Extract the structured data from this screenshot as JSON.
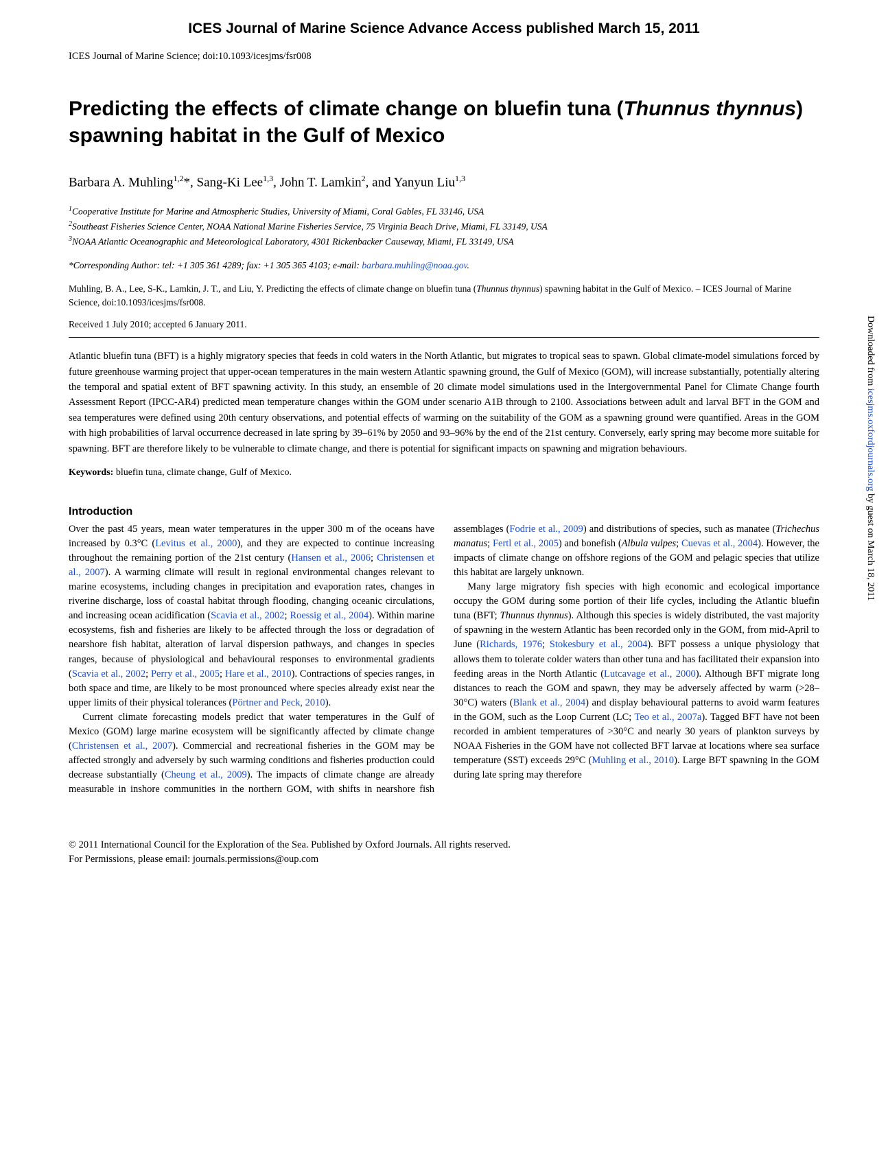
{
  "banner": "ICES Journal of Marine Science Advance Access published March 15, 2011",
  "journal_line": "ICES Journal of Marine Science; doi:10.1093/icesjms/fsr008",
  "title_part1": "Predicting the effects of climate change on bluefin tuna (",
  "title_species": "Thunnus thynnus",
  "title_part2": ") spawning habitat in the Gulf of Mexico",
  "authors_html": "Barbara A. Muhling__SUP__1,2__ESUP__*, Sang-Ki Lee__SUP__1,3__ESUP__, John T. Lamkin__SUP__2__ESUP__, and Yanyun Liu__SUP__1,3__ESUP__",
  "affiliations": [
    {
      "num": "1",
      "text": "Cooperative Institute for Marine and Atmospheric Studies, University of Miami, Coral Gables, FL 33146, USA"
    },
    {
      "num": "2",
      "text": "Southeast Fisheries Science Center, NOAA National Marine Fisheries Service, 75 Virginia Beach Drive, Miami, FL 33149, USA"
    },
    {
      "num": "3",
      "text": "NOAA Atlantic Oceanographic and Meteorological Laboratory, 4301 Rickenbacker Causeway, Miami, FL 33149, USA"
    }
  ],
  "corresponding_prefix": "*Corresponding Author: tel: +1 305 361 4289; fax: +1 305 365 4103; e-mail: ",
  "corresponding_email": "barbara.muhling@noaa.gov",
  "citation_prefix": "Muhling, B. A., Lee, S-K., Lamkin, J. T., and Liu, Y. Predicting the effects of climate change on bluefin tuna (",
  "citation_species": "Thunnus thynnus",
  "citation_suffix": ") spawning habitat in the Gulf of Mexico. – ICES Journal of Marine Science, doi:10.1093/icesjms/fsr008.",
  "dates": "Received 1 July 2010; accepted 6 January 2011.",
  "abstract": "Atlantic bluefin tuna (BFT) is a highly migratory species that feeds in cold waters in the North Atlantic, but migrates to tropical seas to spawn. Global climate-model simulations forced by future greenhouse warming project that upper-ocean temperatures in the main western Atlantic spawning ground, the Gulf of Mexico (GOM), will increase substantially, potentially altering the temporal and spatial extent of BFT spawning activity. In this study, an ensemble of 20 climate model simulations used in the Intergovernmental Panel for Climate Change fourth Assessment Report (IPCC-AR4) predicted mean temperature changes within the GOM under scenario A1B through to 2100. Associations between adult and larval BFT in the GOM and sea temperatures were defined using 20th century observations, and potential effects of warming on the suitability of the GOM as a spawning ground were quantified. Areas in the GOM with high probabilities of larval occurrence decreased in late spring by 39–61% by 2050 and 93–96% by the end of the 21st century. Conversely, early spring may become more suitable for spawning. BFT are therefore likely to be vulnerable to climate change, and there is potential for significant impacts on spawning and migration behaviours.",
  "keywords_label": "Keywords:",
  "keywords_text": " bluefin tuna, climate change, Gulf of Mexico.",
  "intro_heading": "Introduction",
  "body_tokens": [
    {
      "t": "p_open"
    },
    {
      "t": "text",
      "v": "Over the past 45 years, mean water temperatures in the upper 300 m of the oceans have increased by 0.3°C ("
    },
    {
      "t": "link",
      "v": "Levitus et al., 2000"
    },
    {
      "t": "text",
      "v": "), and they are expected to continue increasing throughout the remaining portion of the 21st century ("
    },
    {
      "t": "link",
      "v": "Hansen et al., 2006"
    },
    {
      "t": "text",
      "v": "; "
    },
    {
      "t": "link",
      "v": "Christensen et al., 2007"
    },
    {
      "t": "text",
      "v": "). A warming climate will result in regional environmental changes relevant to marine ecosystems, including changes in precipitation and evaporation rates, changes in riverine discharge, loss of coastal habitat through flooding, changing oceanic circulations, and increasing ocean acidification ("
    },
    {
      "t": "link",
      "v": "Scavia et al., 2002"
    },
    {
      "t": "text",
      "v": "; "
    },
    {
      "t": "link",
      "v": "Roessig et al., 2004"
    },
    {
      "t": "text",
      "v": "). Within marine ecosystems, fish and fisheries are likely to be affected through the loss or degradation of nearshore fish habitat, alteration of larval dispersion pathways, and changes in species ranges, because of physiological and behavioural responses to environmental gradients ("
    },
    {
      "t": "link",
      "v": "Scavia et al., 2002"
    },
    {
      "t": "text",
      "v": "; "
    },
    {
      "t": "link",
      "v": "Perry et al., 2005"
    },
    {
      "t": "text",
      "v": "; "
    },
    {
      "t": "link",
      "v": "Hare et al., 2010"
    },
    {
      "t": "text",
      "v": "). Contractions of species ranges, in both space and time, are likely to be most pronounced where species already exist near the upper limits of their physical tolerances ("
    },
    {
      "t": "link",
      "v": "Pörtner and Peck, 2010"
    },
    {
      "t": "text",
      "v": ")."
    },
    {
      "t": "p_close"
    },
    {
      "t": "p_open"
    },
    {
      "t": "text",
      "v": "Current climate forecasting models predict that water temperatures in the Gulf of Mexico (GOM) large marine ecosystem will be significantly affected by climate change ("
    },
    {
      "t": "link",
      "v": "Christensen et al., 2007"
    },
    {
      "t": "text",
      "v": "). Commercial and recreational fisheries in the GOM may be affected strongly and adversely by such warming conditions and fisheries production could decrease substantially ("
    },
    {
      "t": "link",
      "v": "Cheung et al., 2009"
    },
    {
      "t": "text",
      "v": "). The impacts of climate change are already measurable in inshore communities in the northern GOM, with shifts in nearshore fish assemblages ("
    },
    {
      "t": "link",
      "v": "Fodrie et al., 2009"
    },
    {
      "t": "text",
      "v": ") and distributions of species, such as manatee ("
    },
    {
      "t": "ital",
      "v": "Trichechus manatus"
    },
    {
      "t": "text",
      "v": "; "
    },
    {
      "t": "link",
      "v": "Fertl et al., 2005"
    },
    {
      "t": "text",
      "v": ") and bonefish ("
    },
    {
      "t": "ital",
      "v": "Albula vulpes"
    },
    {
      "t": "text",
      "v": "; "
    },
    {
      "t": "link",
      "v": "Cuevas et al., 2004"
    },
    {
      "t": "text",
      "v": "). However, the impacts of climate change on offshore regions of the GOM and pelagic species that utilize this habitat are largely unknown."
    },
    {
      "t": "p_close"
    },
    {
      "t": "p_open"
    },
    {
      "t": "text",
      "v": "Many large migratory fish species with high economic and ecological importance occupy the GOM during some portion of their life cycles, including the Atlantic bluefin tuna (BFT; "
    },
    {
      "t": "ital",
      "v": "Thunnus thynnus"
    },
    {
      "t": "text",
      "v": "). Although this species is widely distributed, the vast majority of spawning in the western Atlantic has been recorded only in the GOM, from mid-April to June ("
    },
    {
      "t": "link",
      "v": "Richards, 1976"
    },
    {
      "t": "text",
      "v": "; "
    },
    {
      "t": "link",
      "v": "Stokesbury et al., 2004"
    },
    {
      "t": "text",
      "v": "). BFT possess a unique physiology that allows them to tolerate colder waters than other tuna and has facilitated their expansion into feeding areas in the North Atlantic ("
    },
    {
      "t": "link",
      "v": "Lutcavage et al., 2000"
    },
    {
      "t": "text",
      "v": "). Although BFT migrate long distances to reach the GOM and spawn, they may be adversely affected by warm (>28–30°C) waters ("
    },
    {
      "t": "link",
      "v": "Blank et al., 2004"
    },
    {
      "t": "text",
      "v": ") and display behavioural patterns to avoid warm features in the GOM, such as the Loop Current (LC; "
    },
    {
      "t": "link",
      "v": "Teo et al., 2007a"
    },
    {
      "t": "text",
      "v": "). Tagged BFT have not been recorded in ambient temperatures of >30°C and nearly 30 years of plankton surveys by NOAA Fisheries in the GOM have not collected BFT larvae at locations where sea surface temperature (SST) exceeds 29°C ("
    },
    {
      "t": "link",
      "v": "Muhling et al., 2010"
    },
    {
      "t": "text",
      "v": "). Large BFT spawning in the GOM during late spring may therefore"
    },
    {
      "t": "p_close"
    }
  ],
  "footer_line1": "© 2011 International Council for the Exploration of the Sea. Published by Oxford Journals. All rights reserved.",
  "footer_line2": "For Permissions, please email: journals.permissions@oup.com",
  "sidenote_prefix": "Downloaded from ",
  "sidenote_link": "icesjms.oxfordjournals.org",
  "sidenote_suffix": " by guest on March 18, 2011",
  "colors": {
    "link": "#1a4ec9",
    "text": "#000000",
    "background": "#ffffff"
  }
}
